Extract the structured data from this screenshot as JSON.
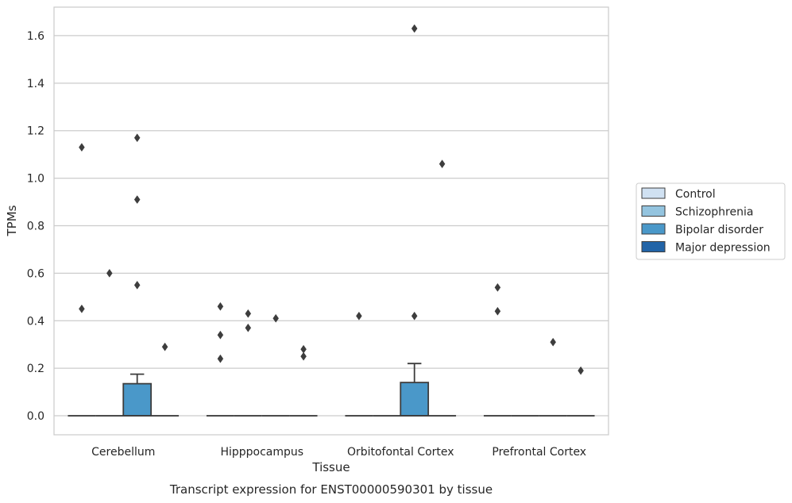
{
  "chart_data": {
    "type": "box",
    "xlabel": "Tissue",
    "ylabel": "TPMs",
    "caption": "Transcript expression for ENST00000590301 by tissue",
    "ylim": [
      -0.08,
      1.72
    ],
    "yticks": [
      0.0,
      0.2,
      0.4,
      0.6,
      0.8,
      1.0,
      1.2,
      1.4,
      1.6
    ],
    "ytick_labels": [
      "0.0",
      "0.2",
      "0.4",
      "0.6",
      "0.8",
      "1.0",
      "1.2",
      "1.4",
      "1.6"
    ],
    "grid": "horizontal",
    "legend_position": "right",
    "categories": [
      "Cerebellum",
      "Hipppocampus",
      "Orbitofontal Cortex",
      "Prefrontal Cortex"
    ],
    "series": [
      {
        "name": "Control",
        "color": "#d0e1f2",
        "boxes": [
          {
            "q1": 0,
            "median": 0,
            "q3": 0,
            "whisker_low": 0,
            "whisker_high": 0,
            "outliers": [
              0.45,
              1.13
            ]
          },
          {
            "q1": 0,
            "median": 0,
            "q3": 0,
            "whisker_low": 0,
            "whisker_high": 0,
            "outliers": [
              0.24,
              0.34,
              0.46
            ]
          },
          {
            "q1": 0,
            "median": 0,
            "q3": 0,
            "whisker_low": 0,
            "whisker_high": 0,
            "outliers": [
              0.42
            ]
          },
          {
            "q1": 0,
            "median": 0,
            "q3": 0,
            "whisker_low": 0,
            "whisker_high": 0,
            "outliers": [
              0.44,
              0.54
            ]
          }
        ]
      },
      {
        "name": "Schizophrenia",
        "color": "#94c4df",
        "boxes": [
          {
            "q1": 0,
            "median": 0,
            "q3": 0,
            "whisker_low": 0,
            "whisker_high": 0,
            "outliers": [
              0.6
            ]
          },
          {
            "q1": 0,
            "median": 0,
            "q3": 0,
            "whisker_low": 0,
            "whisker_high": 0,
            "outliers": [
              0.37,
              0.43
            ]
          },
          {
            "q1": 0,
            "median": 0,
            "q3": 0,
            "whisker_low": 0,
            "whisker_high": 0,
            "outliers": []
          },
          {
            "q1": 0,
            "median": 0,
            "q3": 0,
            "whisker_low": 0,
            "whisker_high": 0,
            "outliers": []
          }
        ]
      },
      {
        "name": "Bipolar disorder",
        "color": "#4a98c9",
        "boxes": [
          {
            "q1": 0,
            "median": 0,
            "q3": 0.135,
            "whisker_low": 0,
            "whisker_high": 0.175,
            "outliers": [
              0.55,
              0.91,
              1.17
            ]
          },
          {
            "q1": 0,
            "median": 0,
            "q3": 0,
            "whisker_low": 0,
            "whisker_high": 0,
            "outliers": [
              0.41
            ]
          },
          {
            "q1": 0,
            "median": 0,
            "q3": 0.14,
            "whisker_low": 0,
            "whisker_high": 0.22,
            "outliers": [
              0.42,
              1.63
            ]
          },
          {
            "q1": 0,
            "median": 0,
            "q3": 0,
            "whisker_low": 0,
            "whisker_high": 0,
            "outliers": [
              0.31
            ]
          }
        ]
      },
      {
        "name": "Major depression",
        "color": "#2264a7",
        "boxes": [
          {
            "q1": 0,
            "median": 0,
            "q3": 0,
            "whisker_low": 0,
            "whisker_high": 0,
            "outliers": [
              0.29
            ]
          },
          {
            "q1": 0,
            "median": 0,
            "q3": 0,
            "whisker_low": 0,
            "whisker_high": 0,
            "outliers": [
              0.25,
              0.28
            ]
          },
          {
            "q1": 0,
            "median": 0,
            "q3": 0,
            "whisker_low": 0,
            "whisker_high": 0,
            "outliers": [
              1.06
            ]
          },
          {
            "q1": 0,
            "median": 0,
            "q3": 0,
            "whisker_low": 0,
            "whisker_high": 0,
            "outliers": [
              0.19
            ]
          }
        ]
      }
    ]
  }
}
